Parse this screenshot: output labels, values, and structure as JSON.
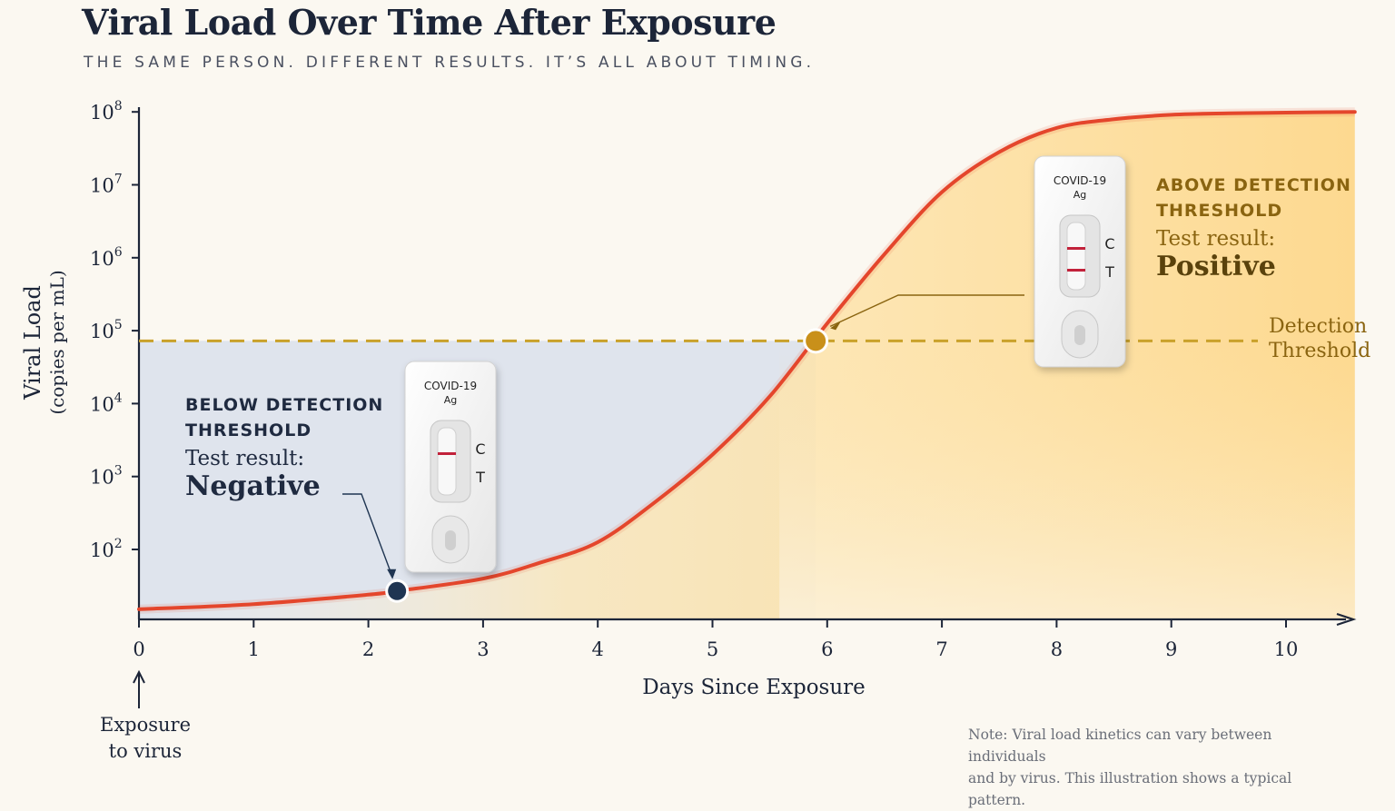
{
  "title": "Viral Load Over Time After Exposure",
  "subtitle": "THE SAME PERSON. DIFFERENT RESULTS. IT’S ALL ABOUT TIMING.",
  "axes": {
    "ylabel_line1": "Viral Load",
    "ylabel_line2": "(copies per mL)",
    "xlabel": "Days Since Exposure"
  },
  "exposure_label": {
    "line1": "Exposure",
    "line2": "to virus"
  },
  "below": {
    "caption_line1": "BELOW DETECTION",
    "caption_line2": "THRESHOLD",
    "result_label": "Test result:",
    "result_value": "Negative"
  },
  "above": {
    "caption_line1": "ABOVE DETECTION",
    "caption_line2": "THRESHOLD",
    "result_label": "Test result:",
    "result_value": "Positive"
  },
  "threshold_label": {
    "line1": "Detection",
    "line2": "Threshold"
  },
  "test_cassette": {
    "brand_line1": "COVID-19",
    "brand_line2": "Ag",
    "control_mark": "C",
    "test_mark": "T"
  },
  "note": {
    "line1": "Note: Viral load kinetics can vary between individuals",
    "line2": "and by virus. This illustration shows a typical pattern."
  },
  "colors": {
    "curve": "#e4462c",
    "threshold": "#c9a12a",
    "negative_point": "#1f3552",
    "positive_point": "#c9901a",
    "negative_region": "#dde3ec",
    "positive_region": "#fde3a8",
    "axis": "#1c2538"
  },
  "chart_data": {
    "type": "line",
    "x_unit": "days",
    "y_scale": "log10",
    "xlim": [
      0,
      10.6
    ],
    "ylim_log10": [
      1,
      8
    ],
    "x_ticks": [
      "0",
      "1",
      "2",
      "3",
      "4",
      "5",
      "6",
      "7",
      "8",
      "9",
      "10"
    ],
    "y_ticks": [
      {
        "base": "10",
        "exp": "2",
        "log10": 2
      },
      {
        "base": "10",
        "exp": "3",
        "log10": 3
      },
      {
        "base": "10",
        "exp": "4",
        "log10": 4
      },
      {
        "base": "10",
        "exp": "5",
        "log10": 5
      },
      {
        "base": "10",
        "exp": "6",
        "log10": 6
      },
      {
        "base": "10",
        "exp": "7",
        "log10": 7
      },
      {
        "base": "10",
        "exp": "8",
        "log10": 8
      }
    ],
    "threshold_log10": 4.86,
    "series": [
      {
        "x": [
          0,
          1,
          2,
          2.25,
          3,
          3.5,
          4,
          4.5,
          5,
          5.5,
          6,
          6.5,
          7,
          7.5,
          8,
          8.5,
          9,
          9.5,
          10,
          10.6
        ],
        "y_log10": [
          1.18,
          1.25,
          1.38,
          1.43,
          1.6,
          1.82,
          2.1,
          2.65,
          3.3,
          4.1,
          5.1,
          6.05,
          6.9,
          7.45,
          7.78,
          7.9,
          7.96,
          7.98,
          7.99,
          8.0
        ]
      }
    ],
    "markers": [
      {
        "name": "negative",
        "x": 2.25,
        "y_log10": 1.43
      },
      {
        "name": "positive",
        "x": 5.9,
        "y_log10": 4.86
      }
    ],
    "grid": false
  }
}
